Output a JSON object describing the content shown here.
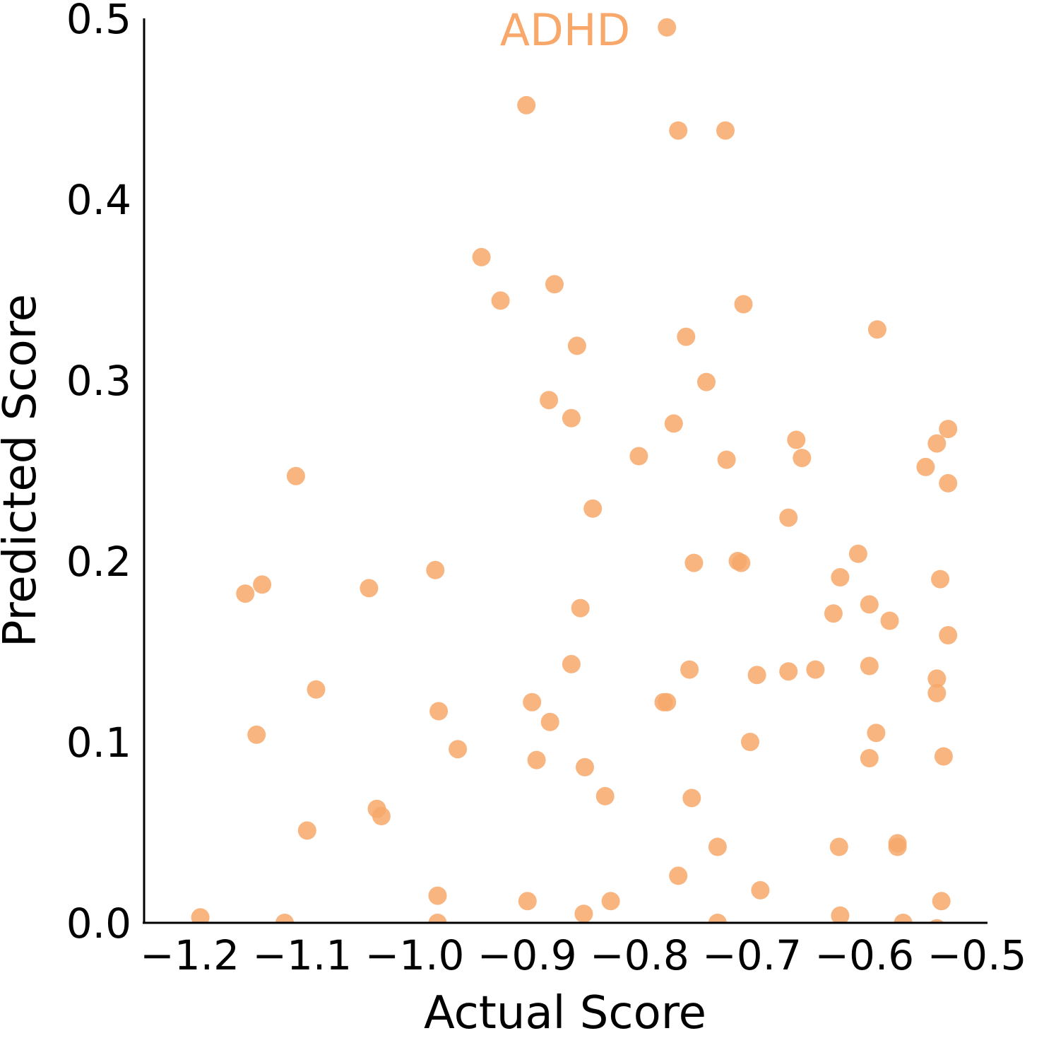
{
  "chart_data": {
    "type": "scatter",
    "annotation": "ADHD",
    "xlabel": "Actual Score",
    "ylabel": "Predicted Score",
    "xlim": [
      -1.25,
      -0.5
    ],
    "ylim": [
      0.0,
      0.5
    ],
    "xticks": [
      -1.2,
      -1.1,
      -1.0,
      -0.9,
      -0.8,
      -0.7,
      -0.6,
      -0.5
    ],
    "xtick_labels": [
      "−1.2",
      "−1.1",
      "−1.0",
      "−0.9",
      "−0.8",
      "−0.7",
      "−0.6",
      "−0.5"
    ],
    "yticks": [
      0.0,
      0.1,
      0.2,
      0.3,
      0.4,
      0.5
    ],
    "ytick_labels": [
      "0.0",
      "0.1",
      "0.2",
      "0.3",
      "0.4",
      "0.5"
    ],
    "grid": false,
    "color": "#f7a86a",
    "series": [
      {
        "points": [
          [
            -0.78,
            0.495
          ],
          [
            -0.905,
            0.452
          ],
          [
            -0.77,
            0.438
          ],
          [
            -0.728,
            0.438
          ],
          [
            -0.945,
            0.368
          ],
          [
            -0.88,
            0.353
          ],
          [
            -0.928,
            0.344
          ],
          [
            -0.712,
            0.342
          ],
          [
            -0.593,
            0.328
          ],
          [
            -0.763,
            0.324
          ],
          [
            -0.86,
            0.319
          ],
          [
            -0.745,
            0.299
          ],
          [
            -0.885,
            0.289
          ],
          [
            -0.865,
            0.279
          ],
          [
            -0.774,
            0.276
          ],
          [
            -0.53,
            0.273
          ],
          [
            -0.665,
            0.267
          ],
          [
            -0.54,
            0.265
          ],
          [
            -0.805,
            0.258
          ],
          [
            -0.727,
            0.256
          ],
          [
            -0.66,
            0.257
          ],
          [
            -0.55,
            0.252
          ],
          [
            -1.11,
            0.247
          ],
          [
            -0.53,
            0.243
          ],
          [
            -0.846,
            0.229
          ],
          [
            -0.672,
            0.224
          ],
          [
            -0.61,
            0.204
          ],
          [
            -0.717,
            0.2
          ],
          [
            -0.714,
            0.199
          ],
          [
            -0.756,
            0.199
          ],
          [
            -0.986,
            0.195
          ],
          [
            -0.626,
            0.191
          ],
          [
            -0.537,
            0.19
          ],
          [
            -1.14,
            0.187
          ],
          [
            -1.045,
            0.185
          ],
          [
            -1.155,
            0.182
          ],
          [
            -0.857,
            0.174
          ],
          [
            -0.6,
            0.176
          ],
          [
            -0.632,
            0.171
          ],
          [
            -0.582,
            0.167
          ],
          [
            -0.53,
            0.159
          ],
          [
            -0.865,
            0.143
          ],
          [
            -0.6,
            0.142
          ],
          [
            -0.76,
            0.14
          ],
          [
            -0.648,
            0.14
          ],
          [
            -0.672,
            0.139
          ],
          [
            -0.7,
            0.137
          ],
          [
            -0.54,
            0.135
          ],
          [
            -0.54,
            0.127
          ],
          [
            -1.092,
            0.129
          ],
          [
            -0.9,
            0.122
          ],
          [
            -0.783,
            0.122
          ],
          [
            -0.78,
            0.122
          ],
          [
            -0.983,
            0.117
          ],
          [
            -0.884,
            0.111
          ],
          [
            -1.145,
            0.104
          ],
          [
            -0.594,
            0.105
          ],
          [
            -0.706,
            0.1
          ],
          [
            -0.966,
            0.096
          ],
          [
            -0.534,
            0.092
          ],
          [
            -0.6,
            0.091
          ],
          [
            -0.896,
            0.09
          ],
          [
            -0.853,
            0.086
          ],
          [
            -0.835,
            0.07
          ],
          [
            -0.758,
            0.069
          ],
          [
            -1.038,
            0.063
          ],
          [
            -1.034,
            0.059
          ],
          [
            -1.1,
            0.051
          ],
          [
            -0.575,
            0.044
          ],
          [
            -0.575,
            0.042
          ],
          [
            -0.627,
            0.042
          ],
          [
            -0.735,
            0.042
          ],
          [
            -0.77,
            0.026
          ],
          [
            -0.697,
            0.018
          ],
          [
            -0.984,
            0.015
          ],
          [
            -0.904,
            0.012
          ],
          [
            -0.83,
            0.012
          ],
          [
            -0.536,
            0.012
          ],
          [
            -0.854,
            0.005
          ],
          [
            -1.195,
            0.003
          ],
          [
            -0.626,
            0.004
          ],
          [
            -1.12,
            0.0
          ],
          [
            -0.984,
            0.0
          ],
          [
            -0.735,
            0.0
          ],
          [
            -0.57,
            0.0
          ],
          [
            -0.54,
            -0.003
          ]
        ]
      }
    ]
  }
}
